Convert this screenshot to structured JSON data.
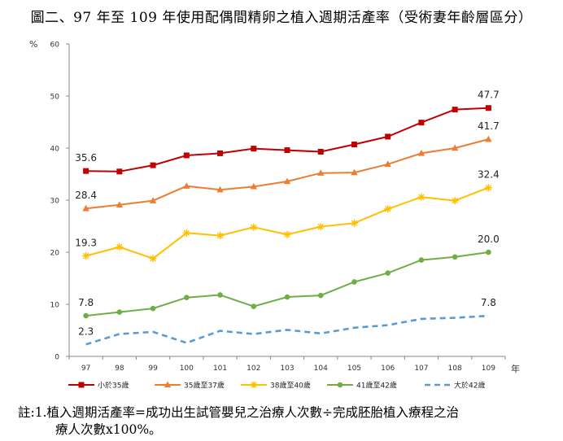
{
  "title": "圖二、97 年至 109 年使用配偶間精卵之植入週期活產率（受術妻年齡層區分）",
  "note": {
    "line1": "註:1.植入週期活產率=成功出生試管嬰兒之治療人次數÷完成胚胎植入療程之治",
    "line2": "療人次數x100%。"
  },
  "chart_data": {
    "type": "line",
    "x": [
      "97",
      "98",
      "99",
      "100",
      "101",
      "102",
      "103",
      "104",
      "105",
      "106",
      "107",
      "108",
      "109"
    ],
    "x_unit": "年",
    "y_unit": "%",
    "ylim": [
      0,
      60
    ],
    "yticks": [
      0,
      10,
      20,
      30,
      40,
      50,
      60
    ],
    "grid": false,
    "legend_position": "bottom",
    "series": [
      {
        "name": "小於35歲",
        "color": "#c00000",
        "marker": "square",
        "dash": false,
        "values": [
          35.6,
          35.5,
          36.7,
          38.6,
          39.0,
          39.9,
          39.6,
          39.3,
          40.7,
          42.2,
          44.9,
          47.4,
          47.7
        ],
        "labels": [
          {
            "index": 0,
            "text": "35.6"
          },
          {
            "index": 12,
            "text": "47.7"
          }
        ]
      },
      {
        "name": "35歲至37歲",
        "color": "#ed7d31",
        "marker": "triangle",
        "dash": false,
        "values": [
          28.4,
          29.1,
          29.9,
          32.7,
          32.0,
          32.6,
          33.6,
          35.2,
          35.3,
          36.9,
          39.0,
          40.0,
          41.7
        ],
        "labels": [
          {
            "index": 0,
            "text": "28.4"
          },
          {
            "index": 12,
            "text": "41.7"
          }
        ]
      },
      {
        "name": "38歲至40歲",
        "color": "#ffc000",
        "marker": "star",
        "dash": false,
        "values": [
          19.3,
          21.0,
          18.8,
          23.7,
          23.2,
          24.8,
          23.4,
          24.9,
          25.6,
          28.3,
          30.6,
          29.9,
          32.4
        ],
        "labels": [
          {
            "index": 0,
            "text": "19.3"
          },
          {
            "index": 12,
            "text": "32.4"
          }
        ]
      },
      {
        "name": "41歲至42歲",
        "color": "#70ad47",
        "marker": "circle",
        "dash": false,
        "values": [
          7.8,
          8.5,
          9.2,
          11.3,
          11.8,
          9.6,
          11.4,
          11.7,
          14.3,
          16.0,
          18.5,
          19.1,
          20.0
        ],
        "labels": [
          {
            "index": 0,
            "text": "7.8"
          },
          {
            "index": 12,
            "text": "20.0"
          }
        ]
      },
      {
        "name": "大於42歲",
        "color": "#5b9bd5",
        "marker": "none",
        "dash": true,
        "values": [
          2.3,
          4.3,
          4.7,
          2.6,
          4.9,
          4.3,
          5.1,
          4.4,
          5.5,
          6.0,
          7.2,
          7.4,
          7.8
        ],
        "labels": [
          {
            "index": 0,
            "text": "2.3"
          },
          {
            "index": 12,
            "text": "7.8"
          }
        ]
      }
    ]
  }
}
